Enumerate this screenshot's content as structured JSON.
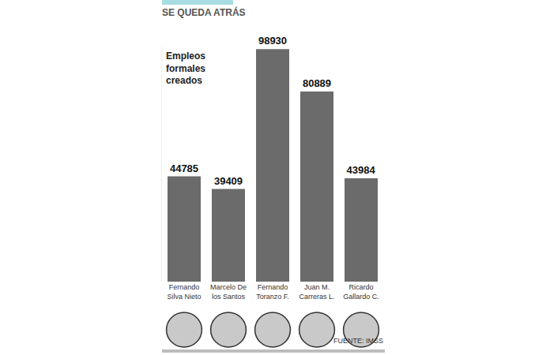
{
  "chart_data": {
    "type": "bar",
    "title": "SE QUEDA ATRÁS",
    "subtitle": "Empleos formales creados",
    "source": "FUENTE: IMSS",
    "categories": [
      "Fernando Silva Nieto",
      "Marcelo De los Santos",
      "Fernando Toranzo F.",
      "Juan M. Carreras L.",
      "Ricardo Gallardo C."
    ],
    "values": [
      44785,
      39409,
      98930,
      80889,
      43984
    ],
    "color": "#6b6b6b",
    "ylim": [
      0,
      100000
    ],
    "yticks": [],
    "grid": false,
    "data_labels": true,
    "tick_labels": "x"
  }
}
